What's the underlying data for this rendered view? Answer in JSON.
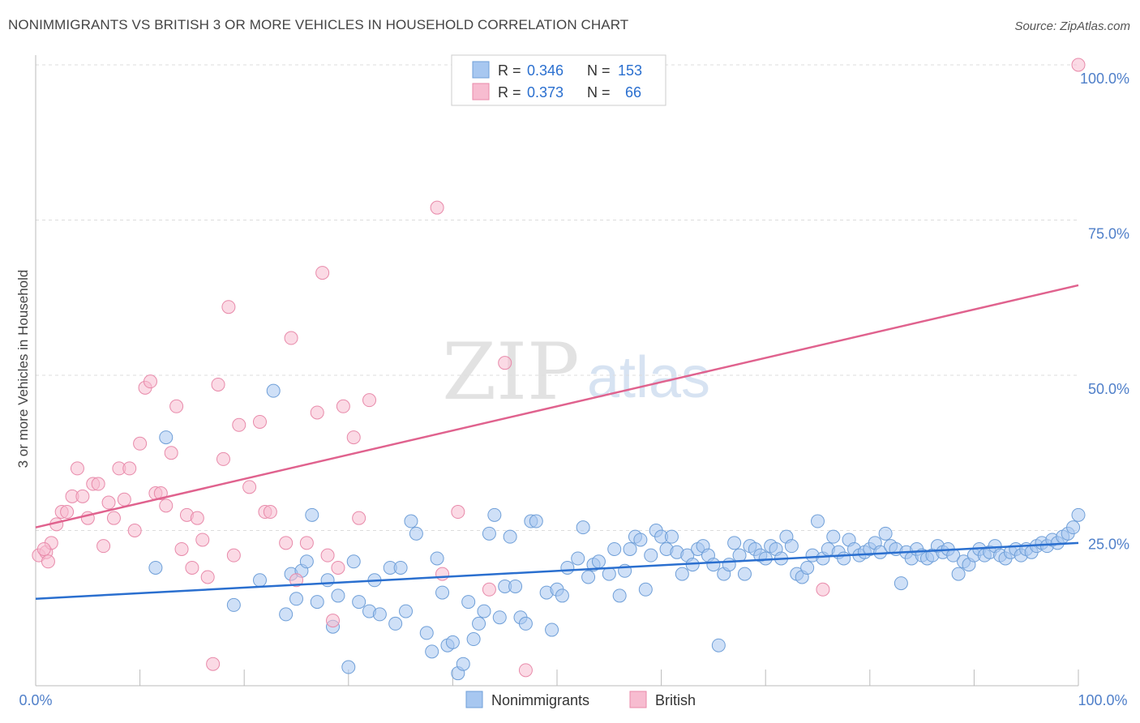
{
  "header": {
    "title": "NONIMMIGRANTS VS BRITISH 3 OR MORE VEHICLES IN HOUSEHOLD CORRELATION CHART",
    "source": "Source: ZipAtlas.com"
  },
  "legend_top": {
    "r_label": "R =",
    "n_label": "N =",
    "rows": [
      {
        "r": "0.346",
        "n": "153"
      },
      {
        "r": "0.373",
        "n": "66"
      }
    ]
  },
  "legend_bottom": [
    "Nonimmigrants",
    "British"
  ],
  "watermark": {
    "zip": "ZIP",
    "atlas": "atlas"
  },
  "colors": {
    "blue_fill": "#a7c7f0",
    "blue_stroke": "#6f9fd8",
    "blue_line": "#2a6fcf",
    "pink_fill": "#f7bcd0",
    "pink_stroke": "#e88aaa",
    "pink_line": "#e0628e",
    "axis_text": "#4f7fc9",
    "grid": "#dddddd"
  },
  "chart_data": {
    "type": "scatter",
    "title": "NONIMMIGRANTS VS BRITISH 3 OR MORE VEHICLES IN HOUSEHOLD CORRELATION CHART",
    "xlabel": "",
    "ylabel": "3 or more Vehicles in Household",
    "xlim": [
      0,
      100
    ],
    "ylim": [
      0,
      100
    ],
    "x_tick_labels": [
      "0.0%",
      "100.0%"
    ],
    "y_ticks": [
      25,
      50,
      75,
      100
    ],
    "y_tick_labels": [
      "25.0%",
      "50.0%",
      "75.0%",
      "100.0%"
    ],
    "grid": true,
    "legend_position": "top-center",
    "series": [
      {
        "name": "Nonimmigrants",
        "color": "#a7c7f0",
        "trend": {
          "x": [
            0,
            100
          ],
          "y": [
            14,
            23
          ]
        },
        "points": [
          [
            11.5,
            19
          ],
          [
            12.5,
            40
          ],
          [
            19,
            13
          ],
          [
            21.5,
            17
          ],
          [
            22.8,
            47.5
          ],
          [
            24,
            11.5
          ],
          [
            24.5,
            18
          ],
          [
            25,
            14
          ],
          [
            25.5,
            18.5
          ],
          [
            26,
            20
          ],
          [
            26.5,
            27.5
          ],
          [
            27,
            13.5
          ],
          [
            28,
            17
          ],
          [
            28.5,
            9.5
          ],
          [
            29,
            14.5
          ],
          [
            30,
            3
          ],
          [
            30.5,
            20
          ],
          [
            31,
            13.5
          ],
          [
            32,
            12
          ],
          [
            32.5,
            17
          ],
          [
            33,
            11.5
          ],
          [
            34,
            19
          ],
          [
            34.5,
            10
          ],
          [
            35,
            19
          ],
          [
            35.5,
            12
          ],
          [
            36,
            26.5
          ],
          [
            36.5,
            24.5
          ],
          [
            37.5,
            8.5
          ],
          [
            38,
            5.5
          ],
          [
            38.5,
            20.5
          ],
          [
            39,
            15
          ],
          [
            39.5,
            6.5
          ],
          [
            40,
            7
          ],
          [
            40.5,
            2
          ],
          [
            41,
            3.5
          ],
          [
            41.5,
            13.5
          ],
          [
            42,
            7.5
          ],
          [
            42.5,
            10
          ],
          [
            43,
            12
          ],
          [
            43.5,
            24.5
          ],
          [
            44,
            27.5
          ],
          [
            44.5,
            11
          ],
          [
            45,
            16
          ],
          [
            45.5,
            24
          ],
          [
            46,
            16
          ],
          [
            46.5,
            11
          ],
          [
            47,
            10
          ],
          [
            47.5,
            26.5
          ],
          [
            48,
            26.5
          ],
          [
            49,
            15
          ],
          [
            49.5,
            9
          ],
          [
            50,
            15.5
          ],
          [
            50.5,
            14.5
          ],
          [
            51,
            19
          ],
          [
            52,
            20.5
          ],
          [
            52.5,
            25.5
          ],
          [
            53,
            17.5
          ],
          [
            53.5,
            19.5
          ],
          [
            54,
            20
          ],
          [
            55,
            18
          ],
          [
            55.5,
            22
          ],
          [
            56,
            14.5
          ],
          [
            56.5,
            18.5
          ],
          [
            57,
            22
          ],
          [
            57.5,
            24
          ],
          [
            58,
            23.5
          ],
          [
            58.5,
            15.5
          ],
          [
            59,
            21
          ],
          [
            59.5,
            25
          ],
          [
            60,
            24
          ],
          [
            60.5,
            22
          ],
          [
            61,
            24
          ],
          [
            61.5,
            21.5
          ],
          [
            62,
            18
          ],
          [
            62.5,
            21
          ],
          [
            63,
            19.5
          ],
          [
            63.5,
            22
          ],
          [
            64,
            22.5
          ],
          [
            64.5,
            21
          ],
          [
            65,
            19.5
          ],
          [
            65.5,
            6.5
          ],
          [
            66,
            18
          ],
          [
            66.5,
            19.5
          ],
          [
            67,
            23
          ],
          [
            67.5,
            21
          ],
          [
            68,
            18
          ],
          [
            68.5,
            22.5
          ],
          [
            69,
            22
          ],
          [
            69.5,
            21
          ],
          [
            70,
            20.5
          ],
          [
            70.5,
            22.5
          ],
          [
            71,
            22
          ],
          [
            71.5,
            20.5
          ],
          [
            72,
            24
          ],
          [
            72.5,
            22.5
          ],
          [
            73,
            18
          ],
          [
            73.5,
            17.5
          ],
          [
            74,
            19
          ],
          [
            74.5,
            21
          ],
          [
            75,
            26.5
          ],
          [
            75.5,
            20.5
          ],
          [
            76,
            22
          ],
          [
            76.5,
            24
          ],
          [
            77,
            21.5
          ],
          [
            77.5,
            20.5
          ],
          [
            78,
            23.5
          ],
          [
            78.5,
            22
          ],
          [
            79,
            21
          ],
          [
            79.5,
            21.5
          ],
          [
            80,
            22
          ],
          [
            80.5,
            23
          ],
          [
            81,
            21.5
          ],
          [
            81.5,
            24.5
          ],
          [
            82,
            22.5
          ],
          [
            82.5,
            22
          ],
          [
            83,
            16.5
          ],
          [
            83.5,
            21.5
          ],
          [
            84,
            20.5
          ],
          [
            84.5,
            22
          ],
          [
            85,
            21
          ],
          [
            85.5,
            20.5
          ],
          [
            86,
            21
          ],
          [
            86.5,
            22.5
          ],
          [
            87,
            21.5
          ],
          [
            87.5,
            22
          ],
          [
            88,
            21
          ],
          [
            88.5,
            18
          ],
          [
            89,
            20
          ],
          [
            89.5,
            19.5
          ],
          [
            90,
            21
          ],
          [
            90.5,
            22
          ],
          [
            91,
            21
          ],
          [
            91.5,
            21.5
          ],
          [
            92,
            22.5
          ],
          [
            92.5,
            21
          ],
          [
            93,
            20.5
          ],
          [
            93.5,
            21.5
          ],
          [
            94,
            22
          ],
          [
            94.5,
            21
          ],
          [
            95,
            22
          ],
          [
            95.5,
            21.5
          ],
          [
            96,
            22.5
          ],
          [
            96.5,
            23
          ],
          [
            97,
            22.5
          ],
          [
            97.5,
            23.5
          ],
          [
            98,
            23
          ],
          [
            98.5,
            24
          ],
          [
            99,
            24.5
          ],
          [
            99.5,
            25.5
          ],
          [
            100,
            27.5
          ]
        ]
      },
      {
        "name": "British",
        "color": "#f7bcd0",
        "trend": {
          "x": [
            0,
            100
          ],
          "y": [
            25.5,
            64.5
          ]
        },
        "points": [
          [
            0.3,
            21
          ],
          [
            1,
            21.5
          ],
          [
            1.5,
            23
          ],
          [
            2,
            26
          ],
          [
            2.5,
            28
          ],
          [
            3,
            28
          ],
          [
            3.5,
            30.5
          ],
          [
            4,
            35
          ],
          [
            4.5,
            30.5
          ],
          [
            5,
            27
          ],
          [
            5.5,
            32.5
          ],
          [
            6,
            32.5
          ],
          [
            6.5,
            22.5
          ],
          [
            7,
            29.5
          ],
          [
            7.5,
            27
          ],
          [
            8,
            35
          ],
          [
            8.5,
            30
          ],
          [
            9,
            35
          ],
          [
            9.5,
            25
          ],
          [
            10,
            39
          ],
          [
            10.5,
            48
          ],
          [
            11,
            49
          ],
          [
            11.5,
            31
          ],
          [
            12,
            31
          ],
          [
            12.5,
            29
          ],
          [
            13,
            37.5
          ],
          [
            13.5,
            45
          ],
          [
            14,
            22
          ],
          [
            14.5,
            27.5
          ],
          [
            15,
            19
          ],
          [
            15.5,
            27
          ],
          [
            16,
            23.5
          ],
          [
            16.5,
            17.5
          ],
          [
            17,
            3.5
          ],
          [
            17.5,
            48.5
          ],
          [
            18,
            36.5
          ],
          [
            18.5,
            61
          ],
          [
            19,
            21
          ],
          [
            19.5,
            42
          ],
          [
            20.5,
            32
          ],
          [
            21.5,
            42.5
          ],
          [
            22,
            28
          ],
          [
            22.5,
            28
          ],
          [
            24,
            23
          ],
          [
            24.5,
            56
          ],
          [
            25,
            17
          ],
          [
            26,
            23
          ],
          [
            27,
            44
          ],
          [
            27.5,
            66.5
          ],
          [
            28,
            21
          ],
          [
            28.5,
            10.5
          ],
          [
            29,
            19
          ],
          [
            29.5,
            45
          ],
          [
            30.5,
            40
          ],
          [
            31,
            27
          ],
          [
            32,
            46
          ],
          [
            38.5,
            77
          ],
          [
            39,
            18
          ],
          [
            40.5,
            28
          ],
          [
            43.5,
            15.5
          ],
          [
            45,
            52
          ],
          [
            47,
            2.5
          ],
          [
            75.5,
            15.5
          ],
          [
            100,
            100
          ],
          [
            0.8,
            22
          ],
          [
            1.2,
            20
          ]
        ]
      }
    ]
  }
}
